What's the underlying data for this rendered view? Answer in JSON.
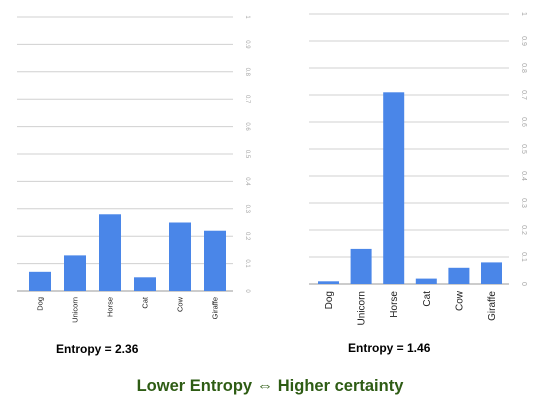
{
  "chart_data": [
    {
      "type": "bar",
      "categories": [
        "Dog",
        "Unicorn",
        "Horse",
        "Cat",
        "Cow",
        "Giraffe"
      ],
      "values": [
        0.07,
        0.13,
        0.28,
        0.05,
        0.25,
        0.22
      ],
      "ylim": [
        0,
        1
      ],
      "yticks": [
        "0",
        "0.1",
        "0.2",
        "0.3",
        "0.4",
        "0.5",
        "0.6",
        "0.7",
        "0.8",
        "0.9",
        "1"
      ],
      "grid": true,
      "caption": "Entropy = 2.36",
      "bar_color": "#4a86e8"
    },
    {
      "type": "bar",
      "categories": [
        "Dog",
        "Unicorn",
        "Horse",
        "Cat",
        "Cow",
        "Giraffe"
      ],
      "values": [
        0.01,
        0.13,
        0.71,
        0.02,
        0.06,
        0.08
      ],
      "ylim": [
        0,
        1
      ],
      "yticks": [
        "0",
        "0.1",
        "0.2",
        "0.3",
        "0.4",
        "0.5",
        "0.6",
        "0.7",
        "0.8",
        "0.9",
        "1"
      ],
      "grid": true,
      "caption": "Entropy = 1.46",
      "bar_color": "#4a86e8"
    }
  ],
  "footer": {
    "caption": "Lower  Entropy ⇔  Higher certainty",
    "color": "#2e5c14"
  }
}
